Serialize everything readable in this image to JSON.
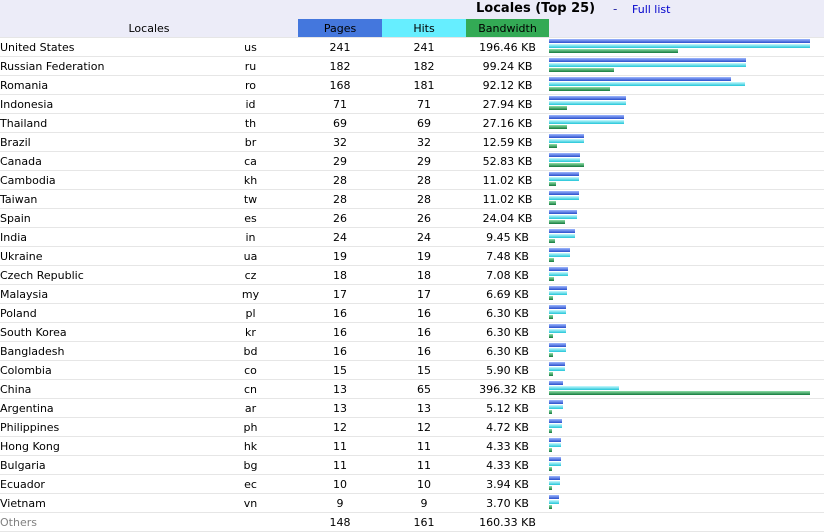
{
  "header": {
    "title": "Locales (Top 25)",
    "separator": "-",
    "full_list_label": "Full list"
  },
  "columns": {
    "locales": "Locales",
    "pages": "Pages",
    "hits": "Hits",
    "bandwidth": "Bandwidth"
  },
  "colors": {
    "pages": "#4477dd",
    "hits": "#66eeff",
    "bandwidth": "#33aa55"
  },
  "rows": [
    {
      "name": "United States",
      "code": "us",
      "pages": "241",
      "hits": "241",
      "bandwidth": "196.46 KB"
    },
    {
      "name": "Russian Federation",
      "code": "ru",
      "pages": "182",
      "hits": "182",
      "bandwidth": "99.24 KB"
    },
    {
      "name": "Romania",
      "code": "ro",
      "pages": "168",
      "hits": "181",
      "bandwidth": "92.12 KB"
    },
    {
      "name": "Indonesia",
      "code": "id",
      "pages": "71",
      "hits": "71",
      "bandwidth": "27.94 KB"
    },
    {
      "name": "Thailand",
      "code": "th",
      "pages": "69",
      "hits": "69",
      "bandwidth": "27.16 KB"
    },
    {
      "name": "Brazil",
      "code": "br",
      "pages": "32",
      "hits": "32",
      "bandwidth": "12.59 KB"
    },
    {
      "name": "Canada",
      "code": "ca",
      "pages": "29",
      "hits": "29",
      "bandwidth": "52.83 KB"
    },
    {
      "name": "Cambodia",
      "code": "kh",
      "pages": "28",
      "hits": "28",
      "bandwidth": "11.02 KB"
    },
    {
      "name": "Taiwan",
      "code": "tw",
      "pages": "28",
      "hits": "28",
      "bandwidth": "11.02 KB"
    },
    {
      "name": "Spain",
      "code": "es",
      "pages": "26",
      "hits": "26",
      "bandwidth": "24.04 KB"
    },
    {
      "name": "India",
      "code": "in",
      "pages": "24",
      "hits": "24",
      "bandwidth": "9.45 KB"
    },
    {
      "name": "Ukraine",
      "code": "ua",
      "pages": "19",
      "hits": "19",
      "bandwidth": "7.48 KB"
    },
    {
      "name": "Czech Republic",
      "code": "cz",
      "pages": "18",
      "hits": "18",
      "bandwidth": "7.08 KB"
    },
    {
      "name": "Malaysia",
      "code": "my",
      "pages": "17",
      "hits": "17",
      "bandwidth": "6.69 KB"
    },
    {
      "name": "Poland",
      "code": "pl",
      "pages": "16",
      "hits": "16",
      "bandwidth": "6.30 KB"
    },
    {
      "name": "South Korea",
      "code": "kr",
      "pages": "16",
      "hits": "16",
      "bandwidth": "6.30 KB"
    },
    {
      "name": "Bangladesh",
      "code": "bd",
      "pages": "16",
      "hits": "16",
      "bandwidth": "6.30 KB"
    },
    {
      "name": "Colombia",
      "code": "co",
      "pages": "15",
      "hits": "15",
      "bandwidth": "5.90 KB"
    },
    {
      "name": "China",
      "code": "cn",
      "pages": "13",
      "hits": "65",
      "bandwidth": "396.32 KB"
    },
    {
      "name": "Argentina",
      "code": "ar",
      "pages": "13",
      "hits": "13",
      "bandwidth": "5.12 KB"
    },
    {
      "name": "Philippines",
      "code": "ph",
      "pages": "12",
      "hits": "12",
      "bandwidth": "4.72 KB"
    },
    {
      "name": "Hong Kong",
      "code": "hk",
      "pages": "11",
      "hits": "11",
      "bandwidth": "4.33 KB"
    },
    {
      "name": "Bulgaria",
      "code": "bg",
      "pages": "11",
      "hits": "11",
      "bandwidth": "4.33 KB"
    },
    {
      "name": "Ecuador",
      "code": "ec",
      "pages": "10",
      "hits": "10",
      "bandwidth": "3.94 KB"
    },
    {
      "name": "Vietnam",
      "code": "vn",
      "pages": "9",
      "hits": "9",
      "bandwidth": "3.70 KB"
    }
  ],
  "others": {
    "name": "Others",
    "pages": "148",
    "hits": "161",
    "bandwidth": "160.33 KB"
  }
}
